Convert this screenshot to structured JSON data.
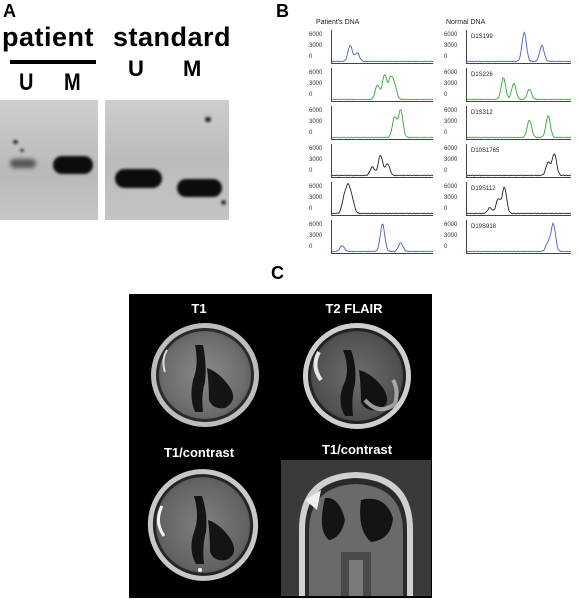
{
  "panels": {
    "a": "A",
    "b": "B",
    "c": "C"
  },
  "panel_a": {
    "patient_label": "patient",
    "standard_label": "standard",
    "patient_lanes": [
      "U",
      "M"
    ],
    "standard_lanes": [
      "U",
      "M"
    ]
  },
  "panel_b": {
    "left_header": "Patient's DNA",
    "right_header": "Normal DNA",
    "yticks": [
      "6000",
      "3000",
      "0"
    ],
    "markers": [
      "D1S199",
      "D1S226",
      "D1S312",
      "D10S1765",
      "D19S112",
      "D19S918"
    ],
    "colors": [
      "#4a5ec4",
      "#3aa33a",
      "#3aa33a",
      "#222222",
      "#222222",
      "#4a5ec4"
    ]
  },
  "panel_c": {
    "titles": [
      "T1",
      "T2 FLAIR",
      "T1/contrast",
      "T1/contrast"
    ]
  }
}
